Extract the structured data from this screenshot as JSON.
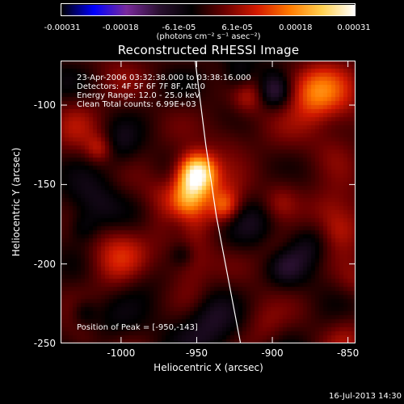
{
  "colorbar": {
    "tick_labels": [
      "-0.00031",
      "-0.00018",
      "-6.1e-05",
      "6.1e-05",
      "0.00018",
      "0.00031"
    ],
    "units_label": "(photons cm⁻² s⁻¹ asec⁻²)",
    "range": [
      -0.00031,
      0.00031
    ]
  },
  "chart_data": {
    "type": "heatmap",
    "title": "Reconstructed RHESSI Image",
    "xlabel": "Heliocentric X (arcsec)",
    "ylabel": "Heliocentric Y (arcsec)",
    "xlim": [
      -1040,
      -845
    ],
    "ylim": [
      -250,
      -72
    ],
    "xticks": [
      -1000,
      -950,
      -900,
      -850
    ],
    "xtick_labels": [
      "-1000",
      "-950",
      "-900",
      "-850"
    ],
    "yticks": [
      -100,
      -150,
      -200,
      -250
    ],
    "ytick_labels": [
      "-100",
      "-150",
      "-200",
      "-250"
    ],
    "peak": {
      "x": -950,
      "y": -143
    },
    "limb": [
      [
        -951,
        -72
      ],
      [
        -944,
        -125
      ],
      [
        -937,
        -170
      ],
      [
        -928,
        -215
      ],
      [
        -921,
        -250
      ]
    ],
    "colormap": [
      "#000000",
      "#0000ff",
      "#7a2a9c",
      "#2a1030",
      "#000000",
      "#6a0000",
      "#d41a00",
      "#ff7a00",
      "#ffd050",
      "#ffffff"
    ],
    "info_lines": [
      "23-Apr-2006 03:32:38.000 to 03:38:16.000",
      "Detectors: 4F 5F 6F 7F 8F, Att 0",
      "Energy Range: 12.0 - 25.0 keV",
      "Clean    Total counts: 6.99E+03"
    ],
    "peak_label": "Position of Peak = [-950,-143]"
  },
  "footer": "16-Jul-2013 14:30"
}
